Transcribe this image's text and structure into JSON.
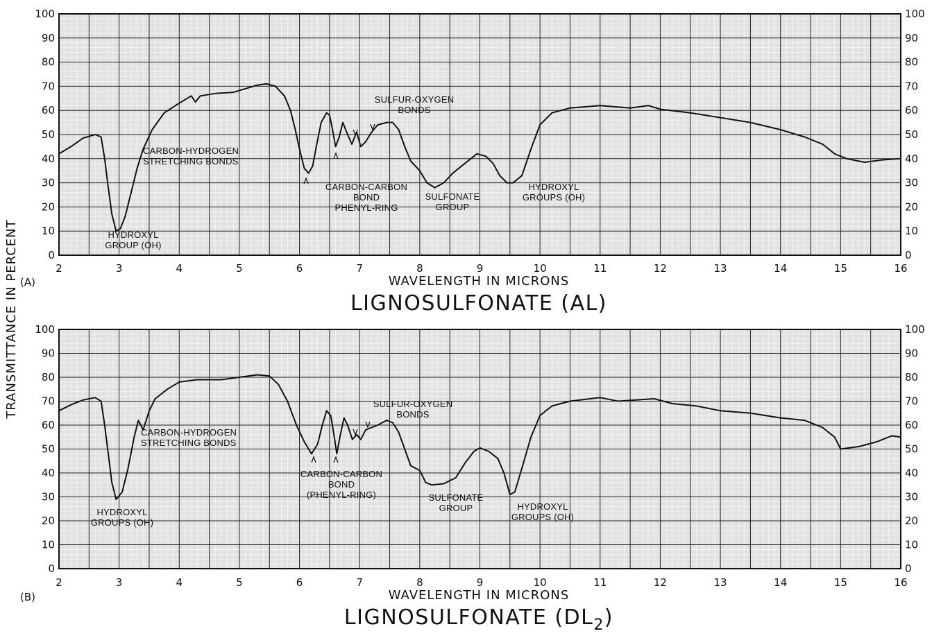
{
  "figure": {
    "ylabel": "TRANSMITTANCE   IN   PERCENT"
  },
  "chart_data": [
    {
      "type": "line",
      "panel_label": "(A)",
      "title": "LIGNOSULFONATE     (AL)",
      "xlabel": "WAVELENGTH  IN  MICRONS",
      "xlim": [
        2,
        16
      ],
      "ylim": [
        0,
        100
      ],
      "x_ticks": [
        "2",
        "3",
        "4",
        "5",
        "6",
        "7",
        "8",
        "9",
        "10",
        "11",
        "12",
        "13",
        "14",
        "15",
        "16"
      ],
      "y_ticks": [
        "0",
        "10",
        "20",
        "30",
        "40",
        "50",
        "60",
        "70",
        "80",
        "90",
        "100"
      ],
      "grid": true,
      "series": [
        {
          "points": [
            [
              2.0,
              42
            ],
            [
              2.2,
              45
            ],
            [
              2.4,
              48.5
            ],
            [
              2.6,
              50
            ],
            [
              2.7,
              49
            ],
            [
              2.76,
              40
            ],
            [
              2.82,
              28
            ],
            [
              2.88,
              17
            ],
            [
              2.95,
              10
            ],
            [
              3.02,
              11
            ],
            [
              3.1,
              16
            ],
            [
              3.2,
              26
            ],
            [
              3.3,
              36
            ],
            [
              3.4,
              44
            ],
            [
              3.55,
              52
            ],
            [
              3.75,
              59
            ],
            [
              4.0,
              63
            ],
            [
              4.2,
              66
            ],
            [
              4.27,
              63.5
            ],
            [
              4.35,
              66
            ],
            [
              4.6,
              67
            ],
            [
              4.9,
              67.5
            ],
            [
              5.1,
              69
            ],
            [
              5.3,
              70.5
            ],
            [
              5.45,
              71
            ],
            [
              5.6,
              70
            ],
            [
              5.75,
              66
            ],
            [
              5.85,
              60
            ],
            [
              5.93,
              52
            ],
            [
              6.0,
              44
            ],
            [
              6.08,
              36
            ],
            [
              6.15,
              34
            ],
            [
              6.22,
              37
            ],
            [
              6.28,
              45
            ],
            [
              6.36,
              55
            ],
            [
              6.45,
              59
            ],
            [
              6.5,
              58
            ],
            [
              6.55,
              52
            ],
            [
              6.6,
              45
            ],
            [
              6.66,
              49
            ],
            [
              6.72,
              55
            ],
            [
              6.8,
              50
            ],
            [
              6.87,
              46
            ],
            [
              6.95,
              51
            ],
            [
              7.02,
              45
            ],
            [
              7.1,
              47
            ],
            [
              7.2,
              51
            ],
            [
              7.3,
              54
            ],
            [
              7.45,
              55
            ],
            [
              7.55,
              55
            ],
            [
              7.65,
              52
            ],
            [
              7.75,
              45
            ],
            [
              7.85,
              39
            ],
            [
              8.0,
              35
            ],
            [
              8.12,
              30
            ],
            [
              8.25,
              28
            ],
            [
              8.4,
              30
            ],
            [
              8.55,
              34
            ],
            [
              8.7,
              37
            ],
            [
              8.85,
              40
            ],
            [
              8.95,
              42
            ],
            [
              9.1,
              41
            ],
            [
              9.22,
              38
            ],
            [
              9.33,
              33
            ],
            [
              9.45,
              30
            ],
            [
              9.55,
              30
            ],
            [
              9.7,
              33
            ],
            [
              9.85,
              44
            ],
            [
              10.0,
              54
            ],
            [
              10.2,
              59
            ],
            [
              10.5,
              61
            ],
            [
              11.0,
              62
            ],
            [
              11.5,
              61
            ],
            [
              11.8,
              62
            ],
            [
              12.0,
              60.5
            ],
            [
              12.5,
              59
            ],
            [
              13.0,
              57
            ],
            [
              13.5,
              55
            ],
            [
              14.0,
              52
            ],
            [
              14.4,
              49
            ],
            [
              14.7,
              46
            ],
            [
              14.9,
              42
            ],
            [
              15.1,
              40
            ],
            [
              15.4,
              38.5
            ],
            [
              15.7,
              39.5
            ],
            [
              16.0,
              40
            ]
          ]
        }
      ],
      "annotations": [
        {
          "lines": [
            "CARBON-HYDROGEN",
            "STRETCHING  BONDS"
          ]
        },
        {
          "lines": [
            "HYDROXYL",
            "GROUP (OH)"
          ]
        },
        {
          "lines": [
            "SULFUR-OXYGEN",
            "BONDS"
          ]
        },
        {
          "lines": [
            "CARBON-CARBON",
            "BOND",
            "PHENYL-RING"
          ]
        },
        {
          "lines": [
            "SULFONATE",
            "GROUP"
          ]
        },
        {
          "lines": [
            "HYDROXYL",
            "GROUPS (OH)"
          ]
        }
      ]
    },
    {
      "type": "line",
      "panel_label": "(B)",
      "title": "LIGNOSULFONATE     (DL",
      "title_subscript": "2",
      "title_end": ")",
      "xlabel": "WAVELENGTH  IN  MICRONS",
      "xlim": [
        2,
        16
      ],
      "ylim": [
        0,
        100
      ],
      "x_ticks": [
        "2",
        "3",
        "4",
        "5",
        "6",
        "7",
        "8",
        "9",
        "10",
        "11",
        "12",
        "13",
        "14",
        "15",
        "16"
      ],
      "y_ticks": [
        "0",
        "10",
        "20",
        "30",
        "40",
        "50",
        "60",
        "70",
        "80",
        "90",
        "100"
      ],
      "grid": true,
      "series": [
        {
          "points": [
            [
              2.0,
              66
            ],
            [
              2.2,
              68.5
            ],
            [
              2.4,
              70.5
            ],
            [
              2.6,
              71.5
            ],
            [
              2.7,
              70
            ],
            [
              2.76,
              60
            ],
            [
              2.82,
              48
            ],
            [
              2.88,
              36
            ],
            [
              2.95,
              29
            ],
            [
              3.05,
              32
            ],
            [
              3.15,
              42
            ],
            [
              3.25,
              55
            ],
            [
              3.32,
              62
            ],
            [
              3.4,
              58
            ],
            [
              3.5,
              66
            ],
            [
              3.6,
              71
            ],
            [
              3.8,
              75
            ],
            [
              4.0,
              78
            ],
            [
              4.3,
              79
            ],
            [
              4.7,
              79
            ],
            [
              5.0,
              80
            ],
            [
              5.3,
              81
            ],
            [
              5.5,
              80.5
            ],
            [
              5.65,
              77
            ],
            [
              5.8,
              70
            ],
            [
              5.95,
              60
            ],
            [
              6.08,
              53
            ],
            [
              6.2,
              48
            ],
            [
              6.3,
              52
            ],
            [
              6.38,
              60
            ],
            [
              6.45,
              66
            ],
            [
              6.52,
              64
            ],
            [
              6.58,
              55
            ],
            [
              6.62,
              48
            ],
            [
              6.68,
              56
            ],
            [
              6.74,
              63
            ],
            [
              6.8,
              60
            ],
            [
              6.88,
              54
            ],
            [
              6.95,
              56
            ],
            [
              7.02,
              54
            ],
            [
              7.1,
              58
            ],
            [
              7.2,
              59
            ],
            [
              7.3,
              60
            ],
            [
              7.45,
              62
            ],
            [
              7.55,
              61
            ],
            [
              7.65,
              57
            ],
            [
              7.75,
              50
            ],
            [
              7.85,
              43
            ],
            [
              8.0,
              41
            ],
            [
              8.1,
              36
            ],
            [
              8.2,
              35
            ],
            [
              8.4,
              35.5
            ],
            [
              8.6,
              38
            ],
            [
              8.75,
              44
            ],
            [
              8.9,
              49
            ],
            [
              9.0,
              50.5
            ],
            [
              9.15,
              49
            ],
            [
              9.3,
              46
            ],
            [
              9.4,
              40
            ],
            [
              9.5,
              31
            ],
            [
              9.58,
              32
            ],
            [
              9.7,
              42
            ],
            [
              9.85,
              55
            ],
            [
              10.0,
              64
            ],
            [
              10.2,
              68
            ],
            [
              10.5,
              70
            ],
            [
              11.0,
              71.5
            ],
            [
              11.3,
              70
            ],
            [
              11.6,
              70.5
            ],
            [
              11.9,
              71
            ],
            [
              12.2,
              69
            ],
            [
              12.6,
              68
            ],
            [
              13.0,
              66
            ],
            [
              13.5,
              65
            ],
            [
              14.0,
              63
            ],
            [
              14.4,
              62
            ],
            [
              14.7,
              59
            ],
            [
              14.9,
              55
            ],
            [
              15.0,
              50
            ],
            [
              15.3,
              51
            ],
            [
              15.6,
              53
            ],
            [
              15.85,
              55.5
            ],
            [
              16.0,
              55
            ]
          ]
        }
      ],
      "annotations": [
        {
          "lines": [
            "CARBON-HYDROGEN",
            "STRETCHING  BONDS"
          ]
        },
        {
          "lines": [
            "HYDROXYL",
            "GROUPS (OH)"
          ]
        },
        {
          "lines": [
            "SULFUR-OXYGEN",
            "BONDS"
          ]
        },
        {
          "lines": [
            "CARBON-CARBON",
            "BOND",
            "(PHENYL-RING)"
          ]
        },
        {
          "lines": [
            "SULFONATE",
            "GROUP"
          ]
        },
        {
          "lines": [
            "HYDROXYL",
            "GROUPS (OH)"
          ]
        }
      ]
    }
  ]
}
